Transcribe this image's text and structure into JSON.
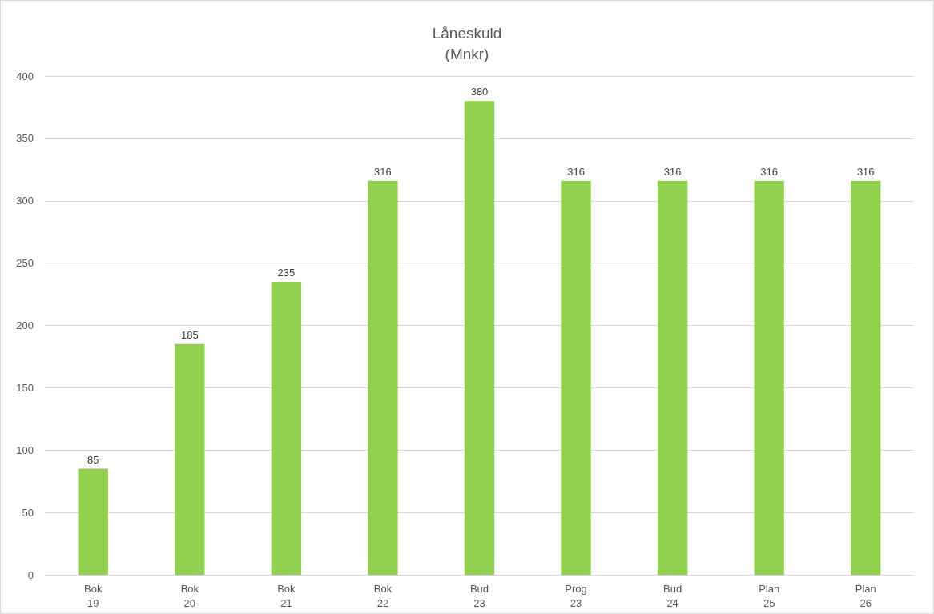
{
  "chart_data": {
    "type": "bar",
    "title": "Låneskuld\n(Mnkr)",
    "categories": [
      "Bok\n19",
      "Bok\n20",
      "Bok\n21",
      "Bok\n22",
      "Bud\n23",
      "Prog\n23",
      "Bud\n24",
      "Plan\n25",
      "Plan\n26"
    ],
    "values": [
      85,
      185,
      235,
      316,
      380,
      316,
      316,
      316,
      316
    ],
    "color": "#92d050",
    "ylim": [
      0,
      400
    ],
    "yticks": [
      0,
      50,
      100,
      150,
      200,
      250,
      300,
      350,
      400
    ],
    "grid": "y",
    "data_labels": true
  }
}
